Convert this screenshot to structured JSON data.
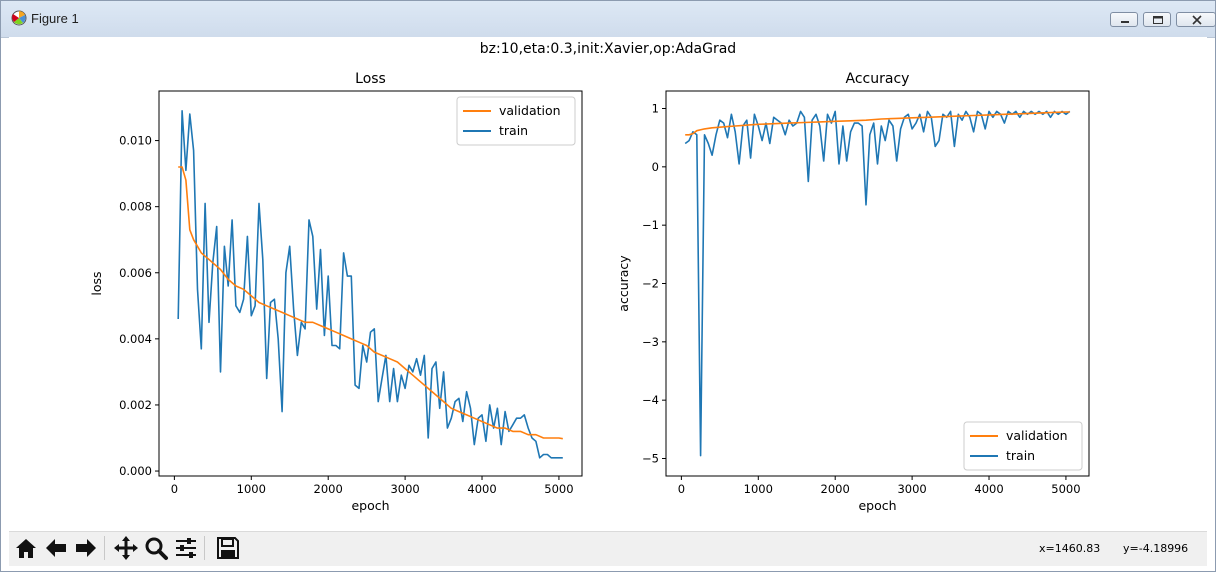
{
  "window": {
    "title": "Figure 1",
    "icon": "matplotlib-logo-icon",
    "controls": [
      "minimize-icon",
      "maximize-icon",
      "close-icon"
    ]
  },
  "figure": {
    "suptitle": "bz:10,eta:0.3,init:Xavier,op:AdaGrad"
  },
  "colors": {
    "train": "#1f77b4",
    "validation": "#ff7f0e"
  },
  "chart_data": [
    {
      "type": "line",
      "title": "Loss",
      "xlabel": "epoch",
      "ylabel": "loss",
      "xlim": [
        -200,
        5300
      ],
      "ylim": [
        -0.00015,
        0.0115
      ],
      "xticks": [
        0,
        1000,
        2000,
        3000,
        4000,
        5000
      ],
      "xticklabels": [
        "0",
        "1000",
        "2000",
        "3000",
        "4000",
        "5000"
      ],
      "yticks": [
        0,
        0.002,
        0.004,
        0.006,
        0.008,
        0.01
      ],
      "yticklabels": [
        "0.000",
        "0.002",
        "0.004",
        "0.006",
        "0.008",
        "0.010"
      ],
      "legend": {
        "location": "upper right",
        "entries": [
          "validation",
          "train"
        ]
      },
      "grid": false,
      "series": [
        {
          "name": "validation",
          "color": "#ff7f0e",
          "x": [
            50,
            100,
            150,
            200,
            250,
            300,
            350,
            400,
            450,
            500,
            600,
            700,
            800,
            900,
            1000,
            1100,
            1200,
            1300,
            1400,
            1500,
            1600,
            1700,
            1800,
            1900,
            2000,
            2100,
            2200,
            2300,
            2400,
            2500,
            2600,
            2700,
            2800,
            2900,
            3000,
            3100,
            3200,
            3300,
            3400,
            3500,
            3600,
            3700,
            3800,
            3900,
            4000,
            4100,
            4200,
            4300,
            4400,
            4500,
            4600,
            4700,
            4800,
            4900,
            5000,
            5050
          ],
          "values": [
            0.0092,
            0.0092,
            0.0088,
            0.0073,
            0.007,
            0.0068,
            0.0066,
            0.0065,
            0.0064,
            0.0063,
            0.0061,
            0.0058,
            0.0056,
            0.0055,
            0.0053,
            0.0051,
            0.005,
            0.0049,
            0.0048,
            0.0047,
            0.0046,
            0.0045,
            0.0045,
            0.0044,
            0.0043,
            0.0042,
            0.0041,
            0.004,
            0.0039,
            0.0038,
            0.0036,
            0.0035,
            0.0034,
            0.0033,
            0.0031,
            0.0029,
            0.0027,
            0.0025,
            0.0023,
            0.0021,
            0.0019,
            0.0018,
            0.0017,
            0.0016,
            0.0015,
            0.0014,
            0.0013,
            0.0013,
            0.0012,
            0.0012,
            0.0011,
            0.0011,
            0.001,
            0.001,
            0.001,
            0.00098
          ]
        },
        {
          "name": "train",
          "color": "#1f77b4",
          "x": [
            50,
            100,
            150,
            200,
            250,
            300,
            350,
            400,
            450,
            500,
            550,
            600,
            650,
            700,
            750,
            800,
            850,
            900,
            950,
            1000,
            1050,
            1100,
            1150,
            1200,
            1250,
            1300,
            1350,
            1400,
            1450,
            1500,
            1550,
            1600,
            1650,
            1700,
            1750,
            1800,
            1850,
            1900,
            1950,
            2000,
            2050,
            2100,
            2150,
            2200,
            2250,
            2300,
            2350,
            2400,
            2450,
            2500,
            2550,
            2600,
            2650,
            2700,
            2750,
            2800,
            2850,
            2900,
            2950,
            3000,
            3050,
            3100,
            3150,
            3200,
            3250,
            3300,
            3350,
            3400,
            3450,
            3500,
            3550,
            3600,
            3650,
            3700,
            3750,
            3800,
            3850,
            3900,
            3950,
            4000,
            4050,
            4100,
            4150,
            4200,
            4250,
            4300,
            4350,
            4400,
            4450,
            4500,
            4550,
            4600,
            4650,
            4700,
            4750,
            4800,
            4850,
            4900,
            4950,
            5000,
            5050
          ],
          "values": [
            0.0046,
            0.0109,
            0.0091,
            0.0108,
            0.0097,
            0.0055,
            0.0037,
            0.0081,
            0.0045,
            0.0063,
            0.0074,
            0.003,
            0.0068,
            0.0056,
            0.0076,
            0.005,
            0.0048,
            0.0052,
            0.0071,
            0.0047,
            0.005,
            0.0081,
            0.0064,
            0.0028,
            0.0051,
            0.0052,
            0.004,
            0.0018,
            0.006,
            0.0068,
            0.0049,
            0.0035,
            0.0045,
            0.0043,
            0.0076,
            0.0071,
            0.0049,
            0.0067,
            0.0041,
            0.0059,
            0.0038,
            0.0038,
            0.0037,
            0.0066,
            0.0059,
            0.0059,
            0.0026,
            0.0025,
            0.0038,
            0.0033,
            0.0042,
            0.0043,
            0.0021,
            0.0028,
            0.0035,
            0.0021,
            0.0031,
            0.0021,
            0.0029,
            0.0025,
            0.0032,
            0.003,
            0.0034,
            0.0029,
            0.0035,
            0.001,
            0.0031,
            0.0033,
            0.0019,
            0.003,
            0.0013,
            0.0016,
            0.0021,
            0.0022,
            0.0015,
            0.0024,
            0.0019,
            0.0008,
            0.0016,
            0.0017,
            0.0009,
            0.002,
            0.0013,
            0.0019,
            0.0008,
            0.0018,
            0.0012,
            0.0014,
            0.0016,
            0.0016,
            0.0017,
            0.0013,
            0.001,
            0.0009,
            0.0004,
            0.0005,
            0.0005,
            0.0004,
            0.0004,
            0.0004,
            0.0004
          ]
        }
      ]
    },
    {
      "type": "line",
      "title": "Accuracy",
      "xlabel": "epoch",
      "ylabel": "accuracy",
      "xlim": [
        -200,
        5300
      ],
      "ylim": [
        -5.3,
        1.3
      ],
      "xticks": [
        0,
        1000,
        2000,
        3000,
        4000,
        5000
      ],
      "xticklabels": [
        "0",
        "1000",
        "2000",
        "3000",
        "4000",
        "5000"
      ],
      "yticks": [
        -5,
        -4,
        -3,
        -2,
        -1,
        0,
        1
      ],
      "yticklabels": [
        "−5",
        "−4",
        "−3",
        "−2",
        "−1",
        "0",
        "1"
      ],
      "legend": {
        "location": "lower right",
        "entries": [
          "validation",
          "train"
        ]
      },
      "grid": false,
      "series": [
        {
          "name": "validation",
          "color": "#ff7f0e",
          "x": [
            50,
            100,
            150,
            200,
            300,
            400,
            500,
            600,
            700,
            800,
            900,
            1000,
            1200,
            1400,
            1600,
            1800,
            2000,
            2200,
            2400,
            2600,
            2800,
            3000,
            3200,
            3400,
            3600,
            3800,
            4000,
            4200,
            4400,
            4600,
            4800,
            5000,
            5050
          ],
          "values": [
            0.55,
            0.55,
            0.57,
            0.62,
            0.65,
            0.67,
            0.68,
            0.69,
            0.7,
            0.71,
            0.72,
            0.73,
            0.74,
            0.75,
            0.76,
            0.77,
            0.78,
            0.79,
            0.8,
            0.82,
            0.83,
            0.84,
            0.85,
            0.86,
            0.87,
            0.88,
            0.89,
            0.9,
            0.91,
            0.92,
            0.93,
            0.94,
            0.94
          ]
        },
        {
          "name": "train",
          "color": "#1f77b4",
          "x": [
            50,
            100,
            150,
            200,
            250,
            300,
            350,
            400,
            450,
            500,
            550,
            600,
            650,
            700,
            750,
            800,
            850,
            900,
            950,
            1000,
            1050,
            1100,
            1150,
            1200,
            1250,
            1300,
            1350,
            1400,
            1450,
            1500,
            1550,
            1600,
            1650,
            1700,
            1750,
            1800,
            1850,
            1900,
            1950,
            2000,
            2050,
            2100,
            2150,
            2200,
            2250,
            2300,
            2350,
            2400,
            2450,
            2500,
            2550,
            2600,
            2650,
            2700,
            2750,
            2800,
            2850,
            2900,
            2950,
            3000,
            3050,
            3100,
            3150,
            3200,
            3250,
            3300,
            3350,
            3400,
            3450,
            3500,
            3550,
            3600,
            3650,
            3700,
            3750,
            3800,
            3850,
            3900,
            3950,
            4000,
            4050,
            4100,
            4150,
            4200,
            4250,
            4300,
            4350,
            4400,
            4450,
            4500,
            4550,
            4600,
            4650,
            4700,
            4750,
            4800,
            4850,
            4900,
            4950,
            5000,
            5050
          ],
          "values": [
            0.4,
            0.45,
            0.6,
            0.55,
            -4.95,
            0.55,
            0.4,
            0.2,
            0.55,
            0.8,
            0.75,
            0.5,
            0.9,
            0.6,
            0.05,
            0.7,
            0.8,
            0.15,
            0.9,
            0.7,
            0.45,
            0.75,
            0.4,
            0.85,
            0.8,
            0.75,
            0.55,
            0.8,
            0.7,
            0.75,
            0.95,
            0.85,
            -0.25,
            0.8,
            0.9,
            0.7,
            0.1,
            0.9,
            0.75,
            0.95,
            0.05,
            0.7,
            0.1,
            0.6,
            0.75,
            0.75,
            0.7,
            -0.65,
            0.55,
            0.75,
            0.05,
            0.7,
            0.45,
            0.8,
            0.7,
            0.1,
            0.65,
            0.85,
            0.9,
            0.65,
            0.75,
            0.9,
            0.6,
            0.95,
            0.85,
            0.35,
            0.45,
            0.9,
            0.85,
            0.95,
            0.35,
            0.9,
            0.8,
            0.95,
            0.85,
            0.6,
            0.95,
            0.9,
            0.65,
            0.95,
            0.85,
            0.95,
            0.9,
            0.75,
            0.95,
            0.9,
            0.95,
            0.85,
            0.95,
            0.9,
            0.95,
            0.9,
            0.95,
            0.9,
            0.95,
            0.85,
            0.95,
            0.9,
            0.95,
            0.9,
            0.95
          ]
        }
      ]
    }
  ],
  "toolbar": {
    "buttons": [
      "home-icon",
      "back-icon",
      "forward-icon",
      "pan-icon",
      "zoom-icon",
      "configure-subplots-icon",
      "save-icon"
    ],
    "coords": {
      "x": "x=1460.83",
      "y": "y=-4.18996"
    }
  }
}
